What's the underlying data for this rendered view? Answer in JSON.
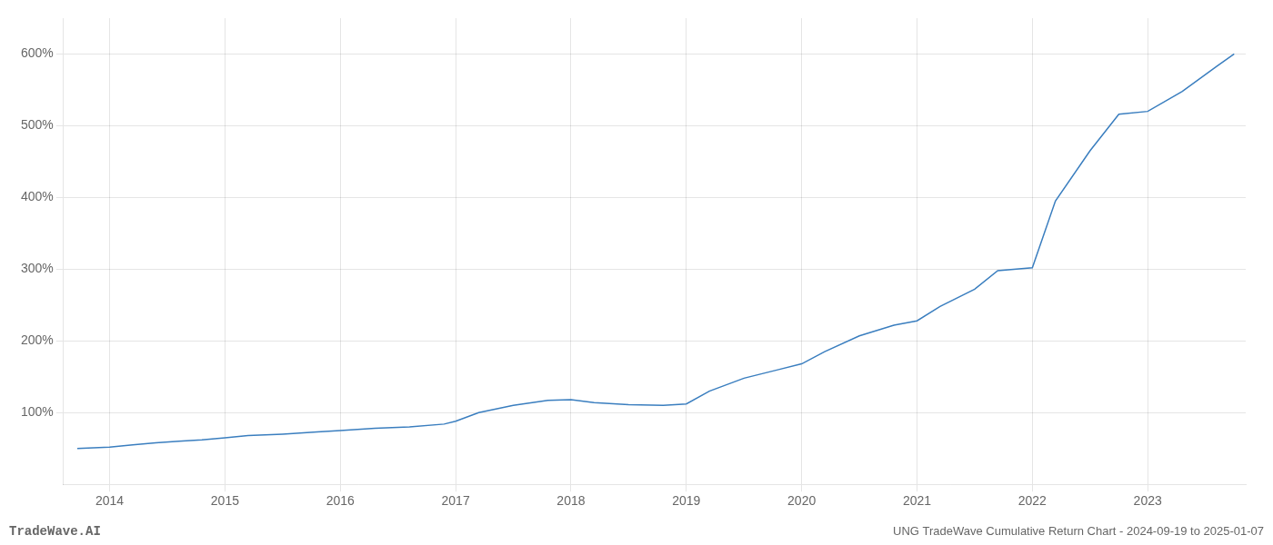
{
  "chart_data": {
    "type": "line",
    "title": "UNG TradeWave Cumulative Return Chart - 2024-09-19 to 2025-01-07",
    "annotations": [
      "TradeWave.AI"
    ],
    "color": "#3a7ebf",
    "x": [
      2013.72,
      2014.0,
      2014.2,
      2014.4,
      2014.6,
      2014.8,
      2015.0,
      2015.2,
      2015.5,
      2015.8,
      2016.0,
      2016.3,
      2016.6,
      2016.9,
      2017.0,
      2017.2,
      2017.5,
      2017.8,
      2018.0,
      2018.2,
      2018.5,
      2018.8,
      2019.0,
      2019.2,
      2019.5,
      2019.8,
      2020.0,
      2020.2,
      2020.5,
      2020.8,
      2021.0,
      2021.2,
      2021.5,
      2021.7,
      2022.0,
      2022.2,
      2022.5,
      2022.75,
      2023.0,
      2023.3,
      2023.6,
      2023.75
    ],
    "values": [
      50,
      52,
      55,
      58,
      60,
      62,
      65,
      68,
      70,
      73,
      75,
      78,
      80,
      84,
      88,
      100,
      110,
      117,
      118,
      114,
      111,
      110,
      112,
      130,
      148,
      160,
      168,
      185,
      207,
      222,
      228,
      248,
      272,
      298,
      302,
      395,
      465,
      516,
      520,
      548,
      583,
      600
    ],
    "xlim": [
      2013.6,
      2023.85
    ],
    "xticks": [
      2014,
      2015,
      2016,
      2017,
      2018,
      2019,
      2020,
      2021,
      2022,
      2023
    ],
    "ylim": [
      0,
      650
    ],
    "yticks": [
      {
        "value": 100,
        "label": "100%"
      },
      {
        "value": 200,
        "label": "200%"
      },
      {
        "value": 300,
        "label": "300%"
      },
      {
        "value": 400,
        "label": "400%"
      },
      {
        "value": 500,
        "label": "500%"
      },
      {
        "value": 600,
        "label": "600%"
      }
    ],
    "grid": true
  }
}
